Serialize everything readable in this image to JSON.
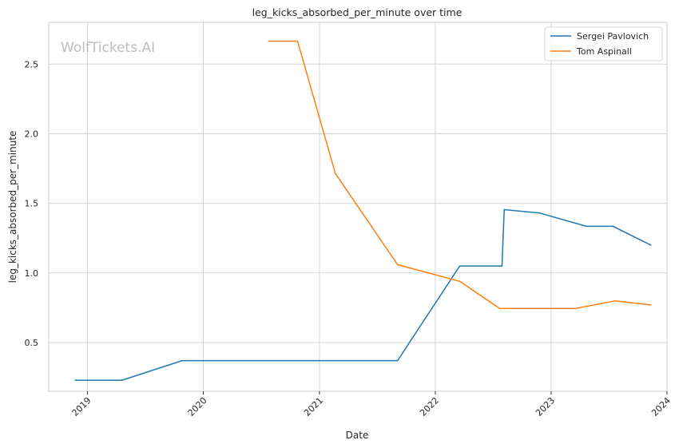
{
  "chart_data": {
    "type": "line",
    "title": "leg_kicks_absorbed_per_minute over time",
    "xlabel": "Date",
    "ylabel": "leg_kicks_absorbed_per_minute",
    "watermark": "WolfTickets.AI",
    "xlim": [
      "2018-09-01",
      "2024-01-01"
    ],
    "ylim": [
      0.15,
      2.8
    ],
    "x_ticks": [
      "2019-01-01",
      "2020-01-01",
      "2021-01-01",
      "2022-01-01",
      "2023-01-01",
      "2024-01-01"
    ],
    "x_tick_labels": [
      "2019",
      "2020",
      "2021",
      "2022",
      "2023",
      "2024"
    ],
    "y_ticks": [
      0.5,
      1.0,
      1.5,
      2.0,
      2.5
    ],
    "y_tick_labels": [
      "0.5",
      "1.0",
      "1.5",
      "2.0",
      "2.5"
    ],
    "grid": true,
    "legend_position": "top-right",
    "series": [
      {
        "name": "Sergei Pavlovich",
        "color": "#1f77b4",
        "x": [
          "2018-11-24",
          "2019-04-20",
          "2019-10-26",
          "2021-09-04",
          "2022-03-19",
          "2022-07-30",
          "2022-08-06",
          "2022-11-26",
          "2023-04-22",
          "2023-07-15",
          "2023-11-11"
        ],
        "y": [
          0.23,
          0.23,
          0.37,
          0.37,
          1.05,
          1.05,
          1.455,
          1.43,
          1.335,
          1.335,
          1.2
        ]
      },
      {
        "name": "Tom Aspinall",
        "color": "#ff7f0e",
        "x": [
          "2020-07-25",
          "2020-10-24",
          "2021-02-20",
          "2021-09-04",
          "2022-03-19",
          "2022-07-23",
          "2023-03-18",
          "2023-07-22",
          "2023-11-11"
        ],
        "y": [
          2.665,
          2.665,
          1.715,
          1.06,
          0.94,
          0.745,
          0.745,
          0.8,
          0.77
        ]
      }
    ]
  }
}
